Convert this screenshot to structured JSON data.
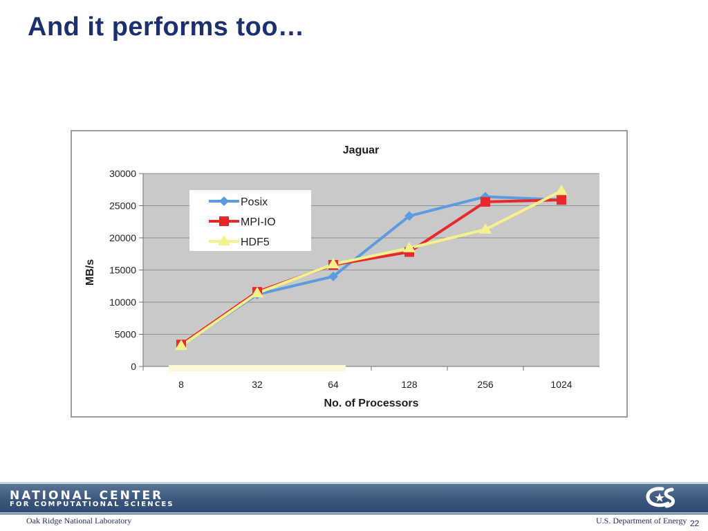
{
  "slide": {
    "title": "And it performs too…",
    "page_number": "22"
  },
  "footer": {
    "org_line1": "NATIONAL CENTER",
    "org_line2": "FOR COMPUTATIONAL SCIENCES",
    "left_text": "Oak Ridge National Laboratory",
    "right_text": "U.S. Department of Energy",
    "logo_icon": "nccs-logo-icon"
  },
  "chart_data": {
    "type": "line",
    "title": "Jaguar",
    "xlabel": "No. of Processors",
    "ylabel": "MB/s",
    "categories": [
      "8",
      "32",
      "64",
      "128",
      "256",
      "1024"
    ],
    "ylim": [
      0,
      30000
    ],
    "yticks": [
      0,
      5000,
      10000,
      15000,
      20000,
      25000,
      30000
    ],
    "grid": true,
    "legend_position": "top-left",
    "series": [
      {
        "name": "Posix",
        "marker": "diamond",
        "color": "#5b9bdf",
        "values": [
          3300,
          11200,
          14000,
          23400,
          26400,
          25900
        ]
      },
      {
        "name": "MPI-IO",
        "marker": "square",
        "color": "#e8282b",
        "values": [
          3400,
          11600,
          15800,
          17800,
          25600,
          25900
        ]
      },
      {
        "name": "HDF5",
        "marker": "triangle",
        "color": "#f4f28c",
        "values": [
          3200,
          11400,
          15900,
          18400,
          21300,
          27300
        ]
      }
    ]
  }
}
